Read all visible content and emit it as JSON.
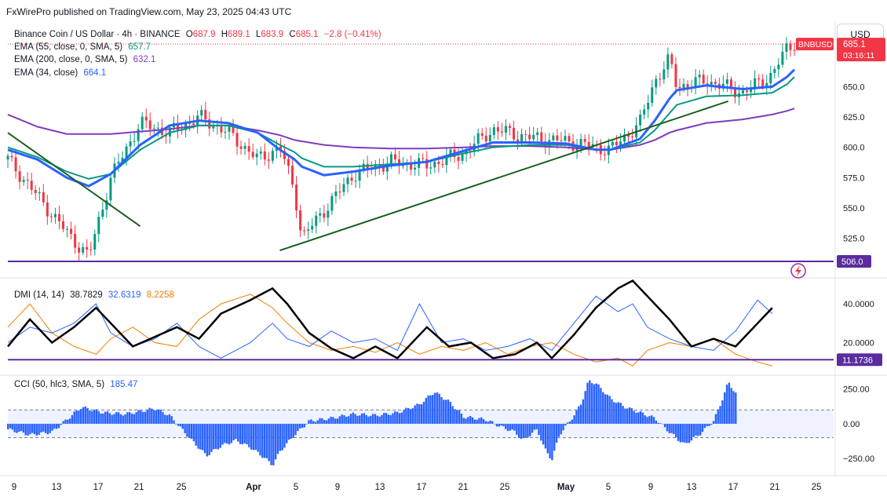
{
  "published": "FxWirePro published on TradingView.com, May 23, 2025 04:43 UTC",
  "currency_button": "USD",
  "main_legend": {
    "title": "Binance Coin / US Dollar · 4h · BINANCE",
    "o_label": "O",
    "o": "687.9",
    "h_label": "H",
    "h": "689.1",
    "l_label": "L",
    "l": "683.9",
    "c_label": "C",
    "c": "685.1",
    "change": "−2.8 (−0.41%)"
  },
  "ema_legend": [
    {
      "label": "EMA (55, close, 0, SMA, 5)",
      "value": "657.7",
      "color": "#089981"
    },
    {
      "label": "EMA (200, close, 0, SMA, 5)",
      "value": "632.1",
      "color": "#7e3dbf"
    },
    {
      "label": "EMA (34, close)",
      "value": "664.1",
      "color": "#2962ff"
    }
  ],
  "dmi_legend": {
    "label": "DMI (14, 14)",
    "adx": "38.7829",
    "plus_di": "32.6319",
    "minus_di": "8.2258"
  },
  "cci_legend": {
    "label": "CCI (50, hlc3, SMA, 5)",
    "value": "185.47"
  },
  "price_tags": {
    "symbol": "BNBUSD",
    "last": "685.1",
    "countdown": "03:16:11",
    "level": "506.0",
    "dmi_level": "11.1736"
  },
  "colors": {
    "up": "#089981",
    "down": "#f23645",
    "ema34": "#2962ff",
    "ema55": "#089981",
    "ema200": "#7e3dbf",
    "trend": "#1b5e20",
    "level": "#5b2c9f",
    "adx": "#000000",
    "plus_di": "#2962ff",
    "minus_di": "#f57c00",
    "cci": "#2962ff"
  },
  "chart_data": [
    {
      "type": "candlestick",
      "title": "Binance Coin / US Dollar · 4h · BINANCE",
      "x_tick_labels": [
        "9",
        "13",
        "17",
        "21",
        "25",
        "Apr",
        "5",
        "9",
        "13",
        "17",
        "21",
        "25",
        "May",
        "5",
        "9",
        "13",
        "17",
        "21",
        "25"
      ],
      "y_ticks": [
        525,
        550,
        575,
        600,
        625,
        650
      ],
      "ylim": [
        495,
        702
      ],
      "series_ohlc_points": [
        [
          0,
          590
        ],
        [
          4,
          560
        ],
        [
          8,
          530
        ],
        [
          11,
          510
        ],
        [
          14,
          575
        ],
        [
          18,
          620
        ],
        [
          22,
          612
        ],
        [
          26,
          625
        ],
        [
          30,
          612
        ],
        [
          34,
          590
        ],
        [
          37,
          600
        ],
        [
          39,
          565
        ],
        [
          40,
          525
        ],
        [
          43,
          548
        ],
        [
          47,
          578
        ],
        [
          52,
          588
        ],
        [
          57,
          585
        ],
        [
          62,
          595
        ],
        [
          66,
          615
        ],
        [
          71,
          608
        ],
        [
          76,
          605
        ],
        [
          80,
          600
        ],
        [
          82,
          598
        ],
        [
          86,
          620
        ],
        [
          88,
          655
        ],
        [
          90,
          672
        ],
        [
          91,
          650
        ],
        [
          95,
          655
        ],
        [
          100,
          645
        ],
        [
          104,
          660
        ],
        [
          106,
          682
        ],
        [
          107,
          686
        ]
      ],
      "ema34": [
        [
          0,
          598
        ],
        [
          4,
          590
        ],
        [
          8,
          575
        ],
        [
          11,
          568
        ],
        [
          14,
          578
        ],
        [
          18,
          602
        ],
        [
          22,
          618
        ],
        [
          26,
          622
        ],
        [
          30,
          620
        ],
        [
          34,
          612
        ],
        [
          37,
          598
        ],
        [
          39,
          590
        ],
        [
          40,
          584
        ],
        [
          43,
          577
        ],
        [
          47,
          580
        ],
        [
          52,
          585
        ],
        [
          57,
          588
        ],
        [
          62,
          597
        ],
        [
          66,
          604
        ],
        [
          71,
          604
        ],
        [
          76,
          603
        ],
        [
          80,
          598
        ],
        [
          82,
          598
        ],
        [
          86,
          607
        ],
        [
          88,
          622
        ],
        [
          90,
          640
        ],
        [
          91,
          647
        ],
        [
          95,
          651
        ],
        [
          100,
          648
        ],
        [
          104,
          650
        ],
        [
          106,
          658
        ],
        [
          107,
          664
        ]
      ],
      "ema55": [
        [
          0,
          600
        ],
        [
          4,
          592
        ],
        [
          8,
          580
        ],
        [
          11,
          574
        ],
        [
          14,
          578
        ],
        [
          18,
          598
        ],
        [
          22,
          612
        ],
        [
          26,
          618
        ],
        [
          30,
          618
        ],
        [
          34,
          612
        ],
        [
          37,
          602
        ],
        [
          39,
          596
        ],
        [
          40,
          591
        ],
        [
          43,
          584
        ],
        [
          47,
          584
        ],
        [
          52,
          586
        ],
        [
          57,
          588
        ],
        [
          62,
          595
        ],
        [
          66,
          600
        ],
        [
          71,
          602
        ],
        [
          76,
          602
        ],
        [
          80,
          598
        ],
        [
          82,
          598
        ],
        [
          86,
          604
        ],
        [
          88,
          614
        ],
        [
          90,
          628
        ],
        [
          91,
          635
        ],
        [
          95,
          642
        ],
        [
          100,
          643
        ],
        [
          104,
          645
        ],
        [
          106,
          652
        ],
        [
          107,
          658
        ]
      ],
      "ema200": [
        [
          0,
          627
        ],
        [
          4,
          617
        ],
        [
          8,
          611
        ],
        [
          11,
          611
        ],
        [
          14,
          611
        ],
        [
          18,
          613
        ],
        [
          22,
          615
        ],
        [
          26,
          618
        ],
        [
          30,
          618
        ],
        [
          34,
          614
        ],
        [
          37,
          610
        ],
        [
          39,
          606
        ],
        [
          40,
          605
        ],
        [
          43,
          602
        ],
        [
          47,
          600
        ],
        [
          52,
          599
        ],
        [
          57,
          599
        ],
        [
          62,
          600
        ],
        [
          66,
          601
        ],
        [
          71,
          601
        ],
        [
          76,
          600
        ],
        [
          80,
          598
        ],
        [
          82,
          598
        ],
        [
          86,
          602
        ],
        [
          88,
          606
        ],
        [
          90,
          612
        ],
        [
          91,
          614
        ],
        [
          95,
          620
        ],
        [
          100,
          623
        ],
        [
          104,
          627
        ],
        [
          106,
          630
        ],
        [
          107,
          632
        ]
      ],
      "annotations": [
        {
          "type": "trendline",
          "from": [
            0,
            612
          ],
          "to": [
            18,
            535
          ]
        },
        {
          "type": "trendline",
          "from": [
            37,
            515
          ],
          "to": [
            98,
            638
          ]
        },
        {
          "type": "horizontal",
          "value": 506
        }
      ]
    },
    {
      "type": "line",
      "title": "DMI (14, 14)",
      "y_ticks": [
        20,
        40
      ],
      "ylim": [
        4,
        51
      ],
      "horizontal_level": 11.1736,
      "series": [
        {
          "name": "ADX",
          "values": [
            [
              0,
              18
            ],
            [
              3,
              32
            ],
            [
              6,
              20
            ],
            [
              9,
              28
            ],
            [
              12,
              38
            ],
            [
              14,
              30
            ],
            [
              17,
              18
            ],
            [
              20,
              23
            ],
            [
              23,
              28
            ],
            [
              26,
              22
            ],
            [
              29,
              35
            ],
            [
              33,
              42
            ],
            [
              36,
              48
            ],
            [
              38,
              40
            ],
            [
              41,
              25
            ],
            [
              44,
              17
            ],
            [
              47,
              12
            ],
            [
              50,
              18
            ],
            [
              53,
              12
            ],
            [
              57,
              28
            ],
            [
              60,
              18
            ],
            [
              63,
              20
            ],
            [
              66,
              12
            ],
            [
              69,
              14
            ],
            [
              72,
              20
            ],
            [
              74,
              12
            ],
            [
              77,
              24
            ],
            [
              80,
              38
            ],
            [
              83,
              48
            ],
            [
              85,
              52
            ],
            [
              87,
              44
            ],
            [
              90,
              32
            ],
            [
              93,
              18
            ],
            [
              96,
              22
            ],
            [
              99,
              18
            ],
            [
              102,
              30
            ],
            [
              104,
              38
            ]
          ]
        },
        {
          "name": "+DI",
          "values": [
            [
              0,
              20
            ],
            [
              3,
              28
            ],
            [
              6,
              25
            ],
            [
              9,
              30
            ],
            [
              12,
              40
            ],
            [
              14,
              25
            ],
            [
              17,
              18
            ],
            [
              20,
              22
            ],
            [
              23,
              30
            ],
            [
              26,
              18
            ],
            [
              29,
              12
            ],
            [
              33,
              20
            ],
            [
              36,
              30
            ],
            [
              38,
              22
            ],
            [
              41,
              18
            ],
            [
              44,
              26
            ],
            [
              47,
              20
            ],
            [
              50,
              22
            ],
            [
              53,
              16
            ],
            [
              56,
              40
            ],
            [
              59,
              20
            ],
            [
              62,
              22
            ],
            [
              65,
              16
            ],
            [
              68,
              18
            ],
            [
              71,
              22
            ],
            [
              74,
              16
            ],
            [
              77,
              30
            ],
            [
              80,
              44
            ],
            [
              83,
              36
            ],
            [
              85,
              40
            ],
            [
              87,
              28
            ],
            [
              90,
              22
            ],
            [
              93,
              18
            ],
            [
              96,
              16
            ],
            [
              99,
              26
            ],
            [
              102,
              42
            ],
            [
              104,
              35
            ]
          ]
        },
        {
          "name": "−DI",
          "values": [
            [
              0,
              28
            ],
            [
              3,
              40
            ],
            [
              6,
              25
            ],
            [
              9,
              18
            ],
            [
              12,
              14
            ],
            [
              14,
              22
            ],
            [
              17,
              28
            ],
            [
              20,
              20
            ],
            [
              23,
              18
            ],
            [
              26,
              32
            ],
            [
              29,
              40
            ],
            [
              33,
              45
            ],
            [
              36,
              38
            ],
            [
              38,
              30
            ],
            [
              41,
              20
            ],
            [
              44,
              16
            ],
            [
              47,
              18
            ],
            [
              50,
              15
            ],
            [
              53,
              20
            ],
            [
              56,
              14
            ],
            [
              59,
              18
            ],
            [
              62,
              16
            ],
            [
              65,
              20
            ],
            [
              68,
              14
            ],
            [
              71,
              18
            ],
            [
              74,
              20
            ],
            [
              77,
              14
            ],
            [
              80,
              10
            ],
            [
              83,
              12
            ],
            [
              85,
              8
            ],
            [
              87,
              16
            ],
            [
              90,
              20
            ],
            [
              93,
              18
            ],
            [
              96,
              22
            ],
            [
              99,
              14
            ],
            [
              102,
              10
            ],
            [
              104,
              8
            ]
          ]
        }
      ]
    },
    {
      "type": "bar",
      "title": "CCI (50, hlc3, SMA, 5)",
      "y_ticks": [
        -250,
        0,
        250
      ],
      "ylim": [
        -340,
        350
      ],
      "band": [
        -100,
        100
      ],
      "values": [
        [
          0,
          -40
        ],
        [
          3,
          -80
        ],
        [
          6,
          -60
        ],
        [
          8,
          30
        ],
        [
          10,
          120
        ],
        [
          13,
          80
        ],
        [
          16,
          70
        ],
        [
          20,
          110
        ],
        [
          22,
          60
        ],
        [
          25,
          -120
        ],
        [
          27,
          -230
        ],
        [
          29,
          -160
        ],
        [
          31,
          -120
        ],
        [
          33,
          -170
        ],
        [
          35,
          -250
        ],
        [
          36,
          -300
        ],
        [
          37,
          -200
        ],
        [
          39,
          -80
        ],
        [
          41,
          20
        ],
        [
          44,
          40
        ],
        [
          47,
          70
        ],
        [
          50,
          60
        ],
        [
          53,
          80
        ],
        [
          56,
          140
        ],
        [
          58,
          230
        ],
        [
          60,
          160
        ],
        [
          62,
          50
        ],
        [
          65,
          30
        ],
        [
          67,
          -20
        ],
        [
          69,
          -60
        ],
        [
          70,
          -120
        ],
        [
          72,
          -40
        ],
        [
          73,
          -180
        ],
        [
          74,
          -260
        ],
        [
          75,
          -80
        ],
        [
          77,
          60
        ],
        [
          78,
          150
        ],
        [
          79,
          310
        ],
        [
          80,
          290
        ],
        [
          82,
          180
        ],
        [
          84,
          120
        ],
        [
          86,
          80
        ],
        [
          88,
          40
        ],
        [
          90,
          -60
        ],
        [
          92,
          -150
        ],
        [
          94,
          -80
        ],
        [
          96,
          20
        ],
        [
          97,
          150
        ],
        [
          98,
          300
        ],
        [
          99,
          220
        ]
      ]
    }
  ]
}
